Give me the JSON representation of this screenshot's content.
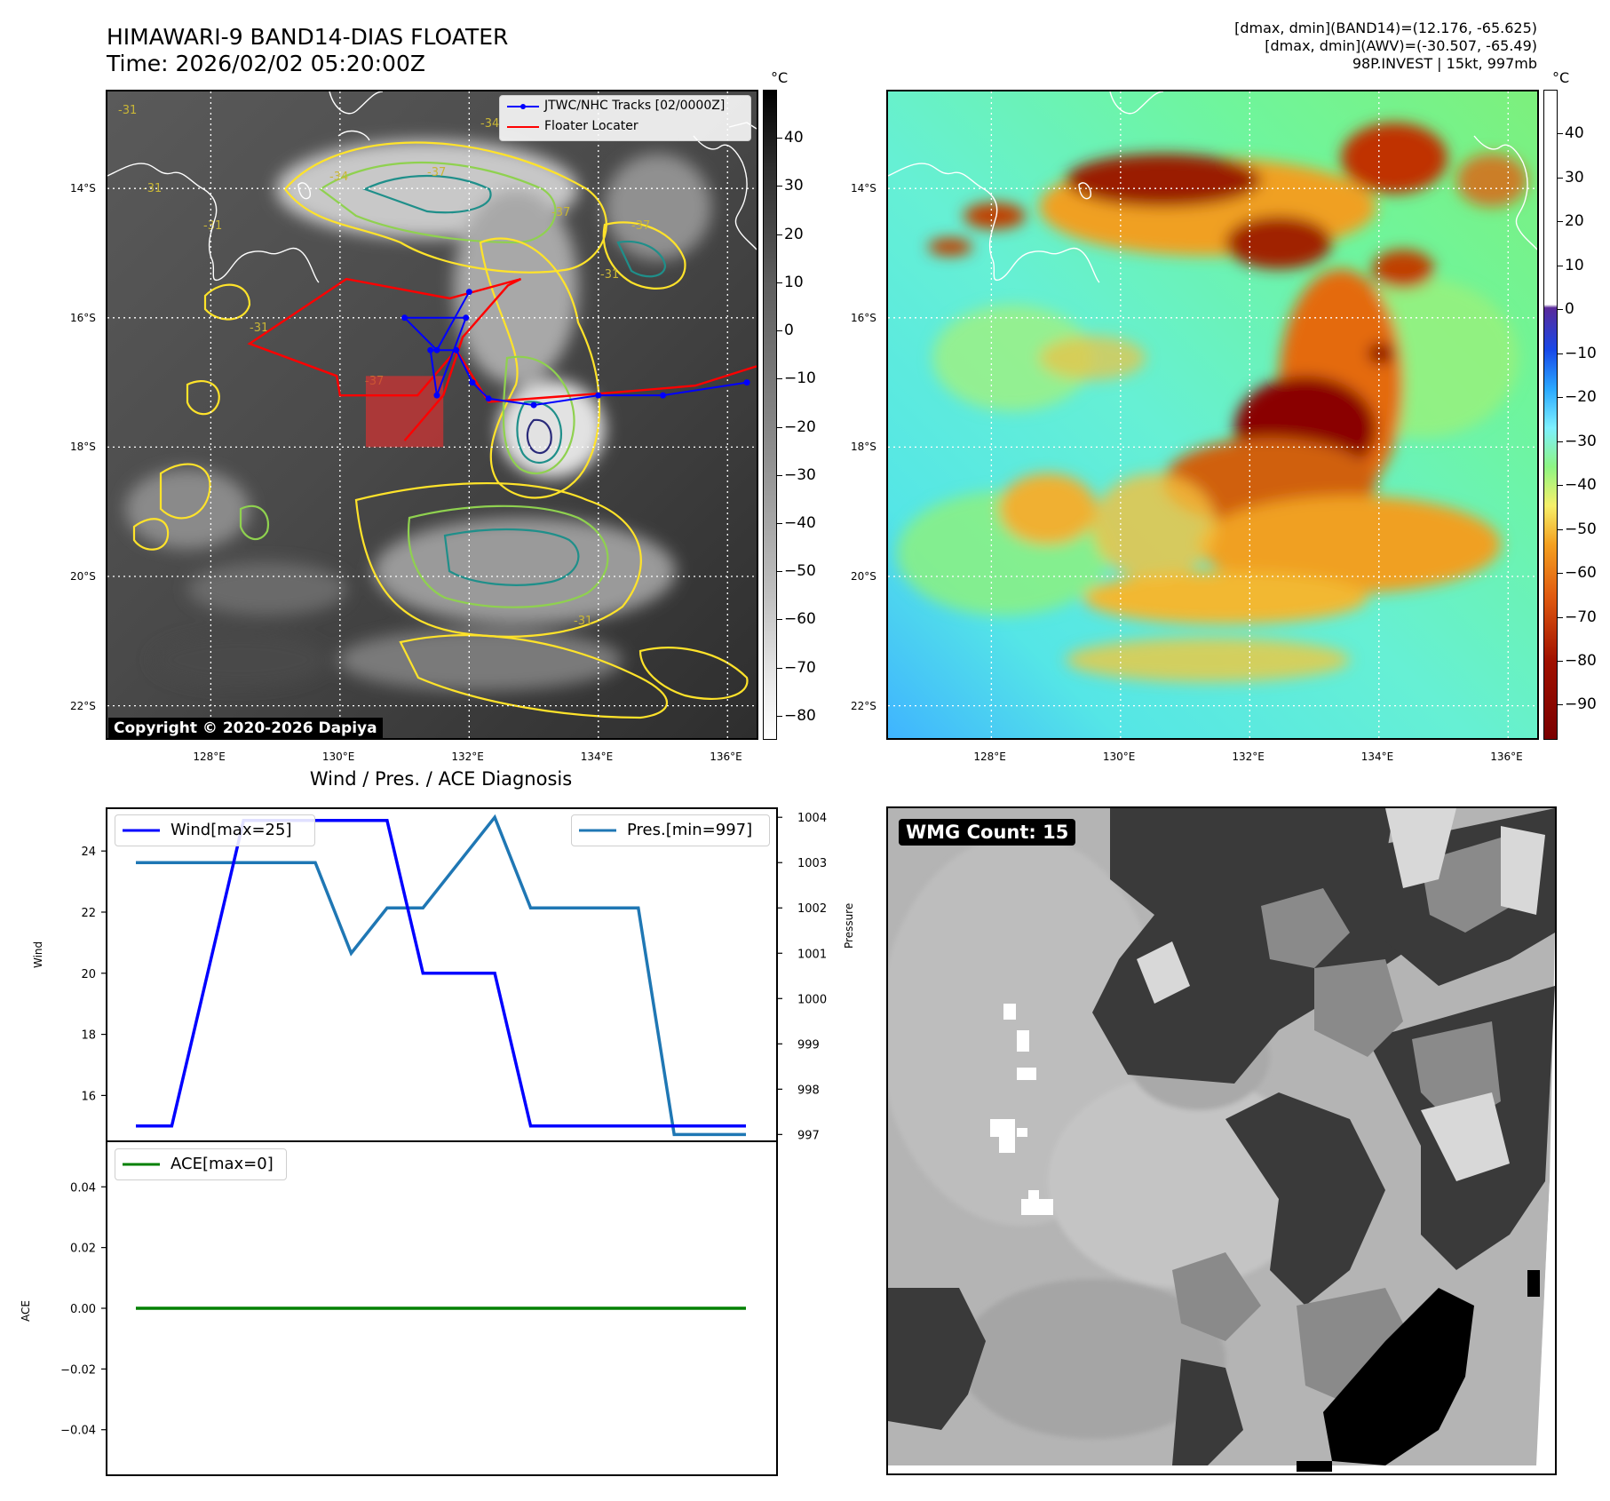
{
  "header": {
    "title_line1": "HIMAWARI-9 BAND14-DIAS FLOATER",
    "title_line2": "Time: 2026/02/02 05:20:00Z",
    "meta_line1": "[dmax, dmin](BAND14)=(12.176, -65.625)",
    "meta_line2": "[dmax, dmin](AWV)=(-30.507, -65.49)",
    "meta_line3": "98P.INVEST | 15kt, 997mb"
  },
  "map": {
    "lat_labels": [
      "14°S",
      "16°S",
      "18°S",
      "20°S",
      "22°S"
    ],
    "lat_values": [
      -14,
      -16,
      -18,
      -20,
      -22
    ],
    "lon_labels": [
      "128°E",
      "130°E",
      "132°E",
      "134°E",
      "136°E"
    ],
    "lon_values": [
      128,
      130,
      132,
      134,
      136
    ],
    "lon_range": [
      126.4,
      136.45
    ],
    "lat_range": [
      -22.5,
      -12.5
    ],
    "legend": {
      "track_label": "JTWC/NHC Tracks [02/0000Z]",
      "floater_label": "Floater Locater"
    },
    "colors": {
      "track": "#0000ff",
      "floater": "#ff0000",
      "box": "#cc3333",
      "contour_yellow": "#ffe32a",
      "contour_green": "#8fd14f",
      "contour_teal": "#1f8f8a",
      "contour_navy": "#2a2a7a"
    },
    "track_points": [
      [
        136.3,
        -17.0
      ],
      [
        135.0,
        -17.2
      ],
      [
        134.0,
        -17.2
      ],
      [
        133.0,
        -17.35
      ],
      [
        132.3,
        -17.25
      ],
      [
        132.05,
        -17.0
      ],
      [
        131.8,
        -16.5
      ],
      [
        131.4,
        -16.5
      ],
      [
        131.5,
        -17.2
      ],
      [
        131.95,
        -16.0
      ],
      [
        131.0,
        -16.0
      ],
      [
        131.5,
        -16.5
      ],
      [
        132.0,
        -15.6
      ]
    ],
    "floater_points": [
      [
        136.45,
        -16.75
      ],
      [
        135.5,
        -17.05
      ],
      [
        134.3,
        -17.15
      ],
      [
        132.3,
        -17.3
      ],
      [
        131.8,
        -16.5
      ],
      [
        131.2,
        -17.2
      ],
      [
        130.0,
        -17.2
      ],
      [
        129.95,
        -16.9
      ],
      [
        128.6,
        -16.4
      ],
      [
        130.1,
        -15.4
      ],
      [
        131.7,
        -15.7
      ],
      [
        132.8,
        -15.4
      ],
      [
        132.6,
        -15.5
      ],
      [
        131.9,
        -16.3
      ],
      [
        131.6,
        -17.2
      ],
      [
        131.0,
        -17.9
      ]
    ],
    "floater_box": {
      "lon_min": 130.4,
      "lon_max": 131.6,
      "lat_min": -18.0,
      "lat_max": -16.9
    },
    "contour_labels": [
      "-31",
      "-31",
      "-31",
      "-34",
      "-37",
      "-34",
      "-37",
      "-37",
      "-31",
      "-31",
      "-37",
      "-31"
    ]
  },
  "colorbar_left": {
    "unit": "°C",
    "ticks": [
      40,
      30,
      20,
      10,
      0,
      -10,
      -20,
      -30,
      -40,
      -50,
      -60,
      -70,
      -80
    ],
    "range": [
      -85,
      50
    ]
  },
  "colorbar_right": {
    "unit": "°C",
    "ticks": [
      40,
      30,
      20,
      10,
      0,
      -10,
      -20,
      -30,
      -40,
      -50,
      -60,
      -70,
      -80,
      -90
    ],
    "range": [
      -98,
      50
    ]
  },
  "copyright": "Copyright © 2020-2026 Dapiya",
  "diagnosis": {
    "title": "Wind / Pres. / ACE Diagnosis",
    "ylabel_wind": "Wind",
    "ylabel_pressure": "Pressure",
    "ylabel_ace": "ACE",
    "legend_wind": "Wind[max=25]",
    "legend_pres": "Pres.[min=997]",
    "legend_ace": "ACE[max=0]",
    "colors": {
      "wind": "#0000ff",
      "pressure": "#1f77b4",
      "ace": "#008000"
    }
  },
  "chart_data": [
    {
      "type": "line",
      "title": "Wind / Pres. / ACE Diagnosis",
      "x": [
        0,
        1,
        2,
        3,
        4,
        5,
        6,
        7,
        8,
        9,
        10,
        11,
        12,
        13,
        14,
        15,
        16,
        17
      ],
      "series": [
        {
          "name": "Wind[max=25]",
          "axis": "left",
          "values": [
            15,
            15,
            20,
            25,
            25,
            25,
            25,
            25,
            20,
            20,
            20,
            15,
            15,
            15,
            15,
            15,
            15,
            15
          ]
        },
        {
          "name": "Pres.[min=997]",
          "axis": "right",
          "values": [
            1003,
            1003,
            1003,
            1003,
            1003,
            1003,
            1001,
            1002,
            1002,
            1003,
            1004,
            1002,
            1002,
            1002,
            1002,
            997,
            997,
            997
          ]
        }
      ],
      "ylabel": "Wind",
      "ylim": [
        14.5,
        25.4
      ],
      "yticks": [
        16,
        18,
        20,
        22,
        24
      ],
      "y2label": "Pressure",
      "y2lim": [
        996.85,
        1004.2
      ],
      "y2ticks": [
        997,
        998,
        999,
        1000,
        1001,
        1002,
        1003,
        1004
      ],
      "legend": [
        "top-left",
        "top-right"
      ]
    },
    {
      "type": "line",
      "x": [
        0,
        17
      ],
      "series": [
        {
          "name": "ACE[max=0]",
          "values": [
            0,
            0
          ]
        }
      ],
      "ylabel": "ACE",
      "ylim": [
        -0.055,
        0.055
      ],
      "yticks": [
        0.04,
        0.02,
        0.0,
        -0.02,
        -0.04
      ],
      "ytick_labels": [
        "0.04",
        "0.02",
        "0.00",
        "−0.02",
        "−0.04"
      ],
      "legend": "top-left"
    }
  ],
  "wmg": {
    "label": "WMG Count: 15"
  }
}
